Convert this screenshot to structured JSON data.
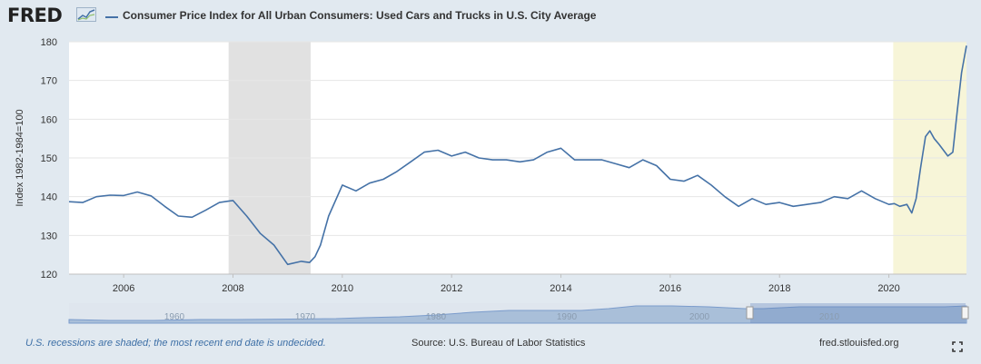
{
  "header": {
    "logo_text": "FRED",
    "legend_label": "Consumer Price Index for All Urban Consumers: Used Cars and Trucks in U.S. City Average"
  },
  "colors": {
    "series": "#4572a7",
    "recession": "#e1e1e1",
    "highlight": "#f7f5d8",
    "background": "#e1e9f0",
    "plot": "#ffffff"
  },
  "chart_data": {
    "type": "line",
    "title": "Consumer Price Index for All Urban Consumers: Used Cars and Trucks in U.S. City Average",
    "xlabel": "",
    "ylabel": "Index 1982-1984=100",
    "xlim": [
      2005.0,
      2021.42
    ],
    "ylim": [
      120,
      180
    ],
    "y_ticks": [
      120,
      130,
      140,
      150,
      160,
      170,
      180
    ],
    "x_ticks": [
      2006,
      2008,
      2010,
      2012,
      2014,
      2016,
      2018,
      2020
    ],
    "recessions": [
      [
        2007.92,
        2009.42
      ]
    ],
    "highlight_period": [
      2020.08,
      2021.42
    ],
    "series": [
      {
        "name": "Consumer Price Index for All Urban Consumers: Used Cars and Trucks in U.S. City Average",
        "x": [
          2005.0,
          2005.25,
          2005.5,
          2005.75,
          2006.0,
          2006.25,
          2006.5,
          2006.75,
          2007.0,
          2007.25,
          2007.5,
          2007.75,
          2008.0,
          2008.25,
          2008.5,
          2008.75,
          2009.0,
          2009.25,
          2009.4,
          2009.5,
          2009.6,
          2009.75,
          2010.0,
          2010.25,
          2010.5,
          2010.75,
          2011.0,
          2011.25,
          2011.5,
          2011.75,
          2012.0,
          2012.25,
          2012.5,
          2012.75,
          2013.0,
          2013.25,
          2013.5,
          2013.75,
          2014.0,
          2014.25,
          2014.5,
          2014.75,
          2015.0,
          2015.25,
          2015.5,
          2015.75,
          2016.0,
          2016.25,
          2016.5,
          2016.75,
          2017.0,
          2017.25,
          2017.5,
          2017.75,
          2018.0,
          2018.25,
          2018.5,
          2018.75,
          2019.0,
          2019.25,
          2019.5,
          2019.75,
          2020.0,
          2020.1,
          2020.2,
          2020.33,
          2020.42,
          2020.5,
          2020.58,
          2020.67,
          2020.75,
          2020.83,
          2020.92,
          2021.0,
          2021.08,
          2021.17,
          2021.25,
          2021.33,
          2021.42
        ],
        "values": [
          138.7,
          138.5,
          140.0,
          140.4,
          140.3,
          141.2,
          140.2,
          137.5,
          135.0,
          134.7,
          136.5,
          138.5,
          139.0,
          135.0,
          130.5,
          127.5,
          122.5,
          123.3,
          123.0,
          124.5,
          127.5,
          135.0,
          143.0,
          141.5,
          143.5,
          144.5,
          146.5,
          149.0,
          151.5,
          152.0,
          150.5,
          151.5,
          150.0,
          149.5,
          149.5,
          149.0,
          149.5,
          151.5,
          152.5,
          149.5,
          149.5,
          149.5,
          148.5,
          147.5,
          149.5,
          148.0,
          144.5,
          144.0,
          145.5,
          143.0,
          140.0,
          137.5,
          139.5,
          138.0,
          138.5,
          137.5,
          138.0,
          138.5,
          140.0,
          139.5,
          141.5,
          139.5,
          138.0,
          138.2,
          137.5,
          138.0,
          135.8,
          139.5,
          147.5,
          155.5,
          157.0,
          155.0,
          153.5,
          152.0,
          150.5,
          151.5,
          162.0,
          172.0,
          179.0
        ]
      }
    ]
  },
  "navigator": {
    "labels": [
      "1960",
      "1970",
      "1980",
      "1990",
      "2000",
      "2010"
    ]
  },
  "footer": {
    "note": "U.S. recessions are shaded; the most recent end date is undecided.",
    "source": "Source: U.S. Bureau of Labor Statistics",
    "site": "fred.stlouisfed.org"
  }
}
